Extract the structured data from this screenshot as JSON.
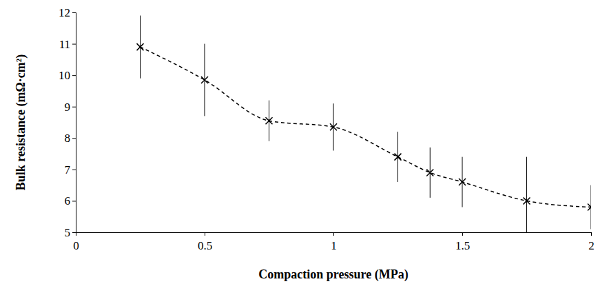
{
  "chart_data": {
    "type": "line",
    "x_label": "Compaction pressure (MPa)",
    "y_label": "Bulk resistance (mΩ·cm²)",
    "x": [
      0.25,
      0.5,
      0.75,
      1.0,
      1.25,
      1.375,
      1.5,
      1.75,
      2.0
    ],
    "values": [
      10.9,
      9.85,
      8.55,
      8.35,
      7.4,
      6.9,
      6.6,
      6.0,
      5.8
    ],
    "errors": [
      1.0,
      1.15,
      0.65,
      0.75,
      0.8,
      0.8,
      0.8,
      1.4,
      0.7
    ],
    "color": "#000000",
    "marker": "x",
    "line_style": "dashed",
    "xlim": [
      0,
      2
    ],
    "xticks": [
      0,
      0.5,
      1,
      1.5,
      2
    ],
    "ylim": [
      5,
      12
    ],
    "yticks": [
      5,
      6,
      7,
      8,
      9,
      10,
      11,
      12
    ],
    "grid": false
  }
}
